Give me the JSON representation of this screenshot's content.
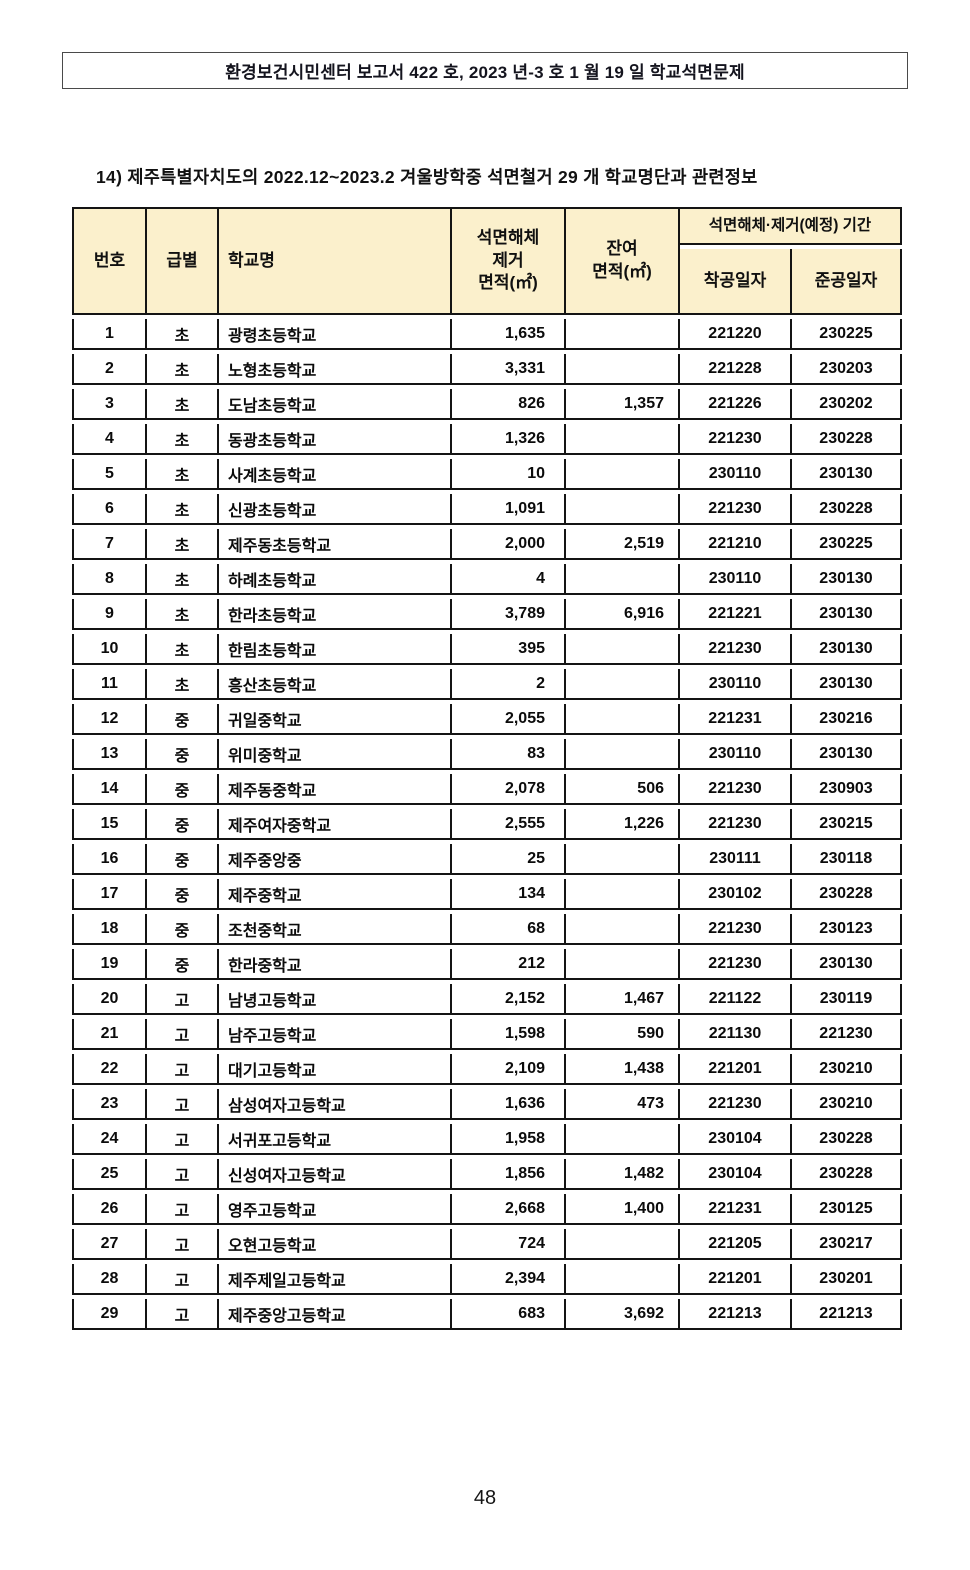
{
  "banner": {
    "text": "환경보건시민센터 보고서 422 호, 2023 년-3 호 1 월 19 일 학교석면문제"
  },
  "section": {
    "title": "14)  제주특별자치도의 2022.12~2023.2 겨울방학중 석면철거 29 개 학교명단과 관련정보"
  },
  "table": {
    "headers": {
      "no": "번호",
      "level": "급별",
      "school_name": "학교명",
      "removal_area": "석면해체\n제거\n면적(㎡)",
      "remaining_area": "잔여\n면적(㎡)",
      "period_group": "석면해체·제거(예정) 기간",
      "start_date": "착공일자",
      "completion_date": "준공일자"
    },
    "rows": [
      [
        "1",
        "초",
        "광령초등학교",
        "1,635",
        "",
        "221220",
        "230225"
      ],
      [
        "2",
        "초",
        "노형초등학교",
        "3,331",
        "",
        "221228",
        "230203"
      ],
      [
        "3",
        "초",
        "도남초등학교",
        "826",
        "1,357",
        "221226",
        "230202"
      ],
      [
        "4",
        "초",
        "동광초등학교",
        "1,326",
        "",
        "221230",
        "230228"
      ],
      [
        "5",
        "초",
        "사계초등학교",
        "10",
        "",
        "230110",
        "230130"
      ],
      [
        "6",
        "초",
        "신광초등학교",
        "1,091",
        "",
        "221230",
        "230228"
      ],
      [
        "7",
        "초",
        "제주동초등학교",
        "2,000",
        "2,519",
        "221210",
        "230225"
      ],
      [
        "8",
        "초",
        "하례초등학교",
        "4",
        "",
        "230110",
        "230130"
      ],
      [
        "9",
        "초",
        "한라초등학교",
        "3,789",
        "6,916",
        "221221",
        "230130"
      ],
      [
        "10",
        "초",
        "한림초등학교",
        "395",
        "",
        "221230",
        "230130"
      ],
      [
        "11",
        "초",
        "흥산초등학교",
        "2",
        "",
        "230110",
        "230130"
      ],
      [
        "12",
        "중",
        "귀일중학교",
        "2,055",
        "",
        "221231",
        "230216"
      ],
      [
        "13",
        "중",
        "위미중학교",
        "83",
        "",
        "230110",
        "230130"
      ],
      [
        "14",
        "중",
        "제주동중학교",
        "2,078",
        "506",
        "221230",
        "230903"
      ],
      [
        "15",
        "중",
        "제주여자중학교",
        "2,555",
        "1,226",
        "221230",
        "230215"
      ],
      [
        "16",
        "중",
        "제주중앙중",
        "25",
        "",
        "230111",
        "230118"
      ],
      [
        "17",
        "중",
        "제주중학교",
        "134",
        "",
        "230102",
        "230228"
      ],
      [
        "18",
        "중",
        "조천중학교",
        "68",
        "",
        "221230",
        "230123"
      ],
      [
        "19",
        "중",
        "한라중학교",
        "212",
        "",
        "221230",
        "230130"
      ],
      [
        "20",
        "고",
        "남녕고등학교",
        "2,152",
        "1,467",
        "221122",
        "230119"
      ],
      [
        "21",
        "고",
        "남주고등학교",
        "1,598",
        "590",
        "221130",
        "221230"
      ],
      [
        "22",
        "고",
        "대기고등학교",
        "2,109",
        "1,438",
        "221201",
        "230210"
      ],
      [
        "23",
        "고",
        "삼성여자고등학교",
        "1,636",
        "473",
        "221230",
        "230210"
      ],
      [
        "24",
        "고",
        "서귀포고등학교",
        "1,958",
        "",
        "230104",
        "230228"
      ],
      [
        "25",
        "고",
        "신성여자고등학교",
        "1,856",
        "1,482",
        "230104",
        "230228"
      ],
      [
        "26",
        "고",
        "영주고등학교",
        "2,668",
        "1,400",
        "221231",
        "230125"
      ],
      [
        "27",
        "고",
        "오현고등학교",
        "724",
        "",
        "221205",
        "230217"
      ],
      [
        "28",
        "고",
        "제주제일고등학교",
        "2,394",
        "",
        "221201",
        "230201"
      ],
      [
        "29",
        "고",
        "제주중앙고등학교",
        "683",
        "3,692",
        "221213",
        "221213"
      ]
    ]
  },
  "footer": {
    "page_number": "48"
  },
  "colors": {
    "header_bg": "#FBF0CC",
    "table_border": "#141414",
    "banner_border": "#4a4a4a"
  }
}
